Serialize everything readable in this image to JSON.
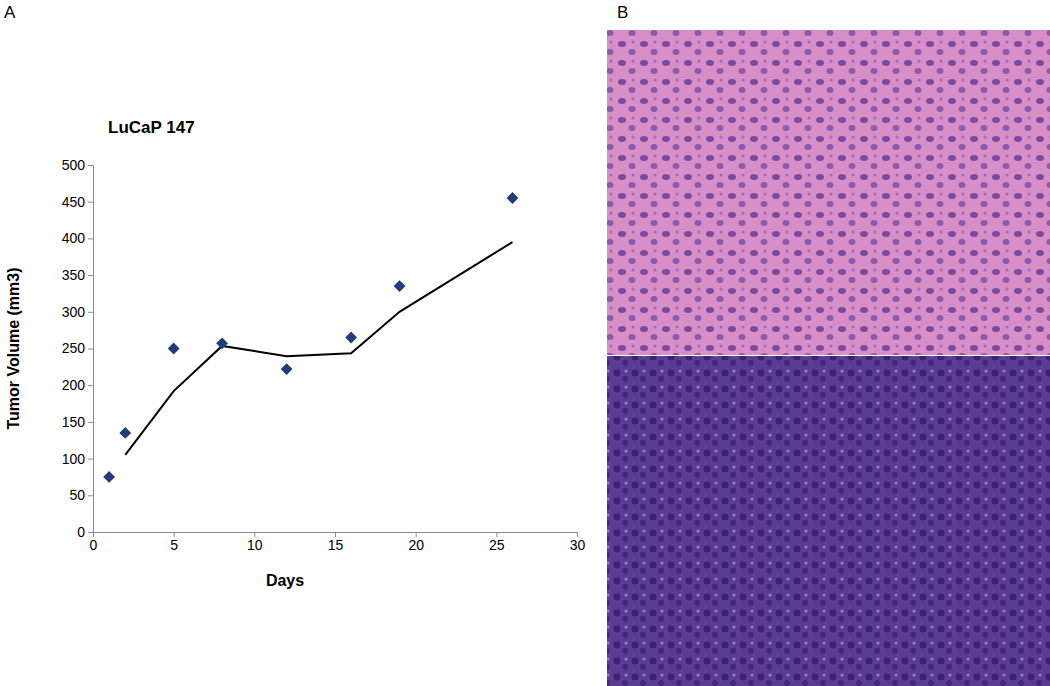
{
  "chart_data": {
    "type": "scatter",
    "title": "LuCaP 147",
    "x_label": "Days",
    "y_label": "Tumor Volume (mm3)",
    "annotations": [
      "A",
      "B"
    ],
    "xlim": [
      0,
      30
    ],
    "xticks": [
      0,
      5,
      10,
      15,
      20,
      25,
      30
    ],
    "ylim": [
      0,
      500
    ],
    "yticks": [
      0,
      50,
      100,
      150,
      200,
      250,
      300,
      350,
      400,
      450,
      500
    ],
    "grid": false,
    "series": [
      {
        "type": "scatter",
        "marker": "diamond",
        "color": "#1f3d7a",
        "x": [
          1,
          2,
          5,
          8,
          12,
          16,
          19,
          26
        ],
        "values": [
          75,
          135,
          250,
          257,
          222,
          265,
          335,
          455
        ]
      },
      {
        "type": "line",
        "line_style": "solid",
        "color": "#000000",
        "x": [
          1,
          2,
          5,
          8,
          12,
          16,
          19,
          26
        ],
        "values": [
          null,
          105,
          192,
          253.5,
          239.5,
          243.5,
          300,
          395
        ]
      }
    ]
  }
}
